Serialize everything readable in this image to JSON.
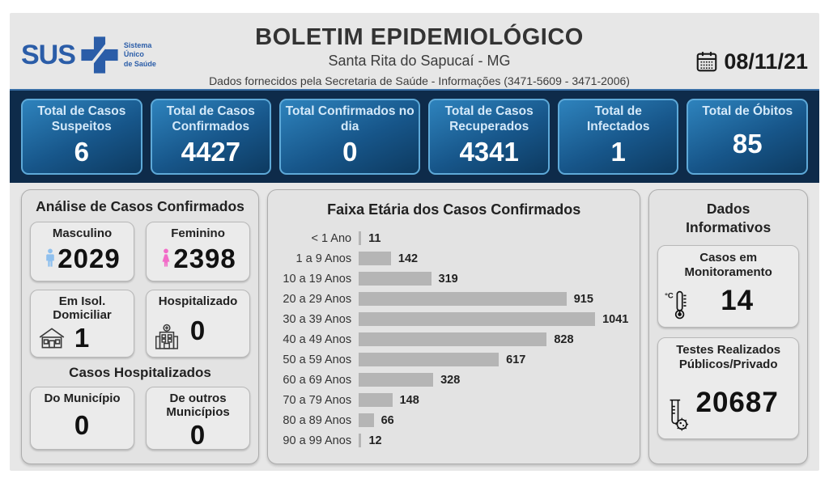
{
  "header": {
    "logo": {
      "text": "SUS",
      "icon": "sus-cross-icon",
      "tagline": [
        "Sistema",
        "Único",
        "de Saúde"
      ]
    },
    "title": "BOLETIM EPIDEMIOLÓGICO",
    "subtitle": "Santa Rita do Sapucaí - MG",
    "info_line": "Dados fornecidos pela Secretaria de Saúde - Informações (3471-5609 - 3471-2006)",
    "date": {
      "icon": "calendar-icon",
      "value": "08/11/21"
    }
  },
  "summary_cards": [
    {
      "label": "Total de Casos Suspeitos",
      "value": "6"
    },
    {
      "label": "Total de Casos Confirmados",
      "value": "4427"
    },
    {
      "label": "Total Confirmados no dia",
      "value": "0"
    },
    {
      "label": "Total de Casos Recuperados",
      "value": "4341"
    },
    {
      "label": "Total de Infectados",
      "value": "1"
    },
    {
      "label": "Total de Óbitos",
      "value": "85"
    }
  ],
  "analysis": {
    "title": "Análise de Casos Confirmados",
    "cards": [
      {
        "label": "Masculino",
        "value": "2029",
        "icon": "male-icon"
      },
      {
        "label": "Feminino",
        "value": "2398",
        "icon": "female-icon"
      },
      {
        "label": "Em Isol. Domiciliar",
        "value": "1",
        "icon": "house-icon"
      },
      {
        "label": "Hospitalizado",
        "value": "0",
        "icon": "hospital-icon"
      }
    ],
    "hospitalized": {
      "title": "Casos Hospitalizados",
      "cards": [
        {
          "label": "Do Município",
          "value": "0"
        },
        {
          "label": "De outros Municípios",
          "value": "0"
        }
      ]
    }
  },
  "chart_data": {
    "type": "bar",
    "orientation": "horizontal",
    "title": "Faixa Etária dos Casos Confirmados",
    "categories": [
      "< 1 Ano",
      "1 a 9 Anos",
      "10 a 19 Anos",
      "20 a 29 Anos",
      "30 a 39 Anos",
      "40 a 49 Anos",
      "50 a 59 Anos",
      "60 a 69 Anos",
      "70 a 79 Anos",
      "80 a 89 Anos",
      "90 a 99 Anos"
    ],
    "values": [
      11,
      142,
      319,
      915,
      1041,
      828,
      617,
      328,
      148,
      66,
      12
    ],
    "xlim": [
      0,
      1041
    ],
    "grid": false,
    "legend": false,
    "data_labels": true,
    "bar_color": "#b5b5b5"
  },
  "info": {
    "title": "Dados Informativos",
    "cards": [
      {
        "label": "Casos em Monitoramento",
        "value": "14",
        "icon": "thermometer-icon"
      },
      {
        "label": "Testes Realizados Públicos/Privado",
        "value": "20687",
        "icon": "test-tube-icon"
      }
    ]
  },
  "colors": {
    "navy_band": "#0e2b4a",
    "card_border": "#5ea9d8",
    "card_gradient_top": "#2e83bd",
    "card_gradient_bottom": "#0d3a60",
    "sus_blue": "#2b5da8",
    "male_blue": "#8fc0ee",
    "female_pink": "#f26cc8",
    "bar_gray": "#b5b5b5"
  }
}
